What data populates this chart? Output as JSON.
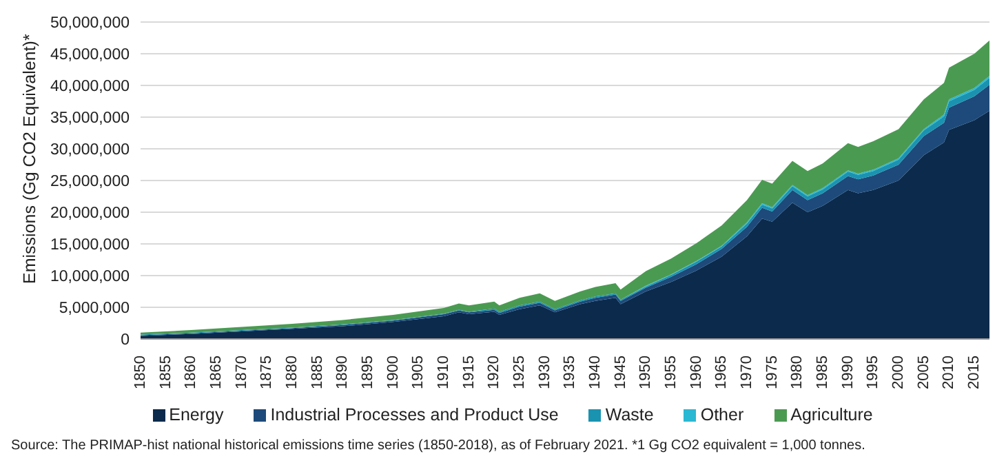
{
  "chart_data": {
    "type": "area",
    "stacked": true,
    "ylabel": "Emissions (Gg CO2 Equivalent)*",
    "x": [
      1850,
      1860,
      1870,
      1880,
      1890,
      1900,
      1910,
      1913,
      1915,
      1920,
      1921,
      1925,
      1929,
      1932,
      1937,
      1940,
      1944,
      1945,
      1950,
      1955,
      1960,
      1965,
      1970,
      1973,
      1975,
      1979,
      1982,
      1985,
      1990,
      1992,
      1995,
      2000,
      2005,
      2009,
      2010,
      2015,
      2018
    ],
    "series": [
      {
        "name": "Energy",
        "color": "#0b2a4c",
        "values": [
          500000,
          800000,
          1200000,
          1600000,
          2000000,
          2700000,
          3600000,
          4200000,
          3900000,
          4300000,
          3800000,
          4700000,
          5300000,
          4200000,
          5500000,
          6000000,
          6500000,
          5500000,
          7500000,
          9000000,
          10800000,
          13000000,
          16200000,
          19000000,
          18500000,
          21500000,
          20000000,
          21000000,
          23500000,
          23000000,
          23500000,
          25000000,
          29000000,
          31000000,
          33000000,
          34500000,
          36000000
        ]
      },
      {
        "name": "Industrial Processes and Product Use",
        "color": "#1d4a7a",
        "values": [
          100000,
          100000,
          100000,
          100000,
          200000,
          200000,
          300000,
          300000,
          300000,
          300000,
          300000,
          400000,
          400000,
          300000,
          400000,
          500000,
          500000,
          500000,
          600000,
          800000,
          1000000,
          1200000,
          1500000,
          1700000,
          1600000,
          2000000,
          1900000,
          2000000,
          2200000,
          2200000,
          2300000,
          2500000,
          3000000,
          3100000,
          3500000,
          3800000,
          4100000
        ]
      },
      {
        "name": "Waste",
        "color": "#1a93b0",
        "values": [
          100000,
          100000,
          100000,
          100000,
          100000,
          100000,
          100000,
          100000,
          100000,
          200000,
          200000,
          200000,
          200000,
          200000,
          200000,
          200000,
          200000,
          200000,
          200000,
          300000,
          400000,
          400000,
          500000,
          500000,
          500000,
          600000,
          600000,
          600000,
          700000,
          700000,
          700000,
          800000,
          900000,
          1000000,
          1000000,
          1000000,
          1100000
        ]
      },
      {
        "name": "Other",
        "color": "#2bb8d2",
        "values": [
          0,
          0,
          0,
          0,
          0,
          0,
          0,
          0,
          0,
          0,
          0,
          0,
          0,
          0,
          0,
          0,
          0,
          0,
          100000,
          100000,
          100000,
          100000,
          200000,
          200000,
          200000,
          200000,
          200000,
          200000,
          200000,
          200000,
          200000,
          200000,
          200000,
          300000,
          300000,
          300000,
          300000
        ]
      },
      {
        "name": "Agriculture",
        "color": "#4b9a52",
        "values": [
          300000,
          400000,
          500000,
          600000,
          700000,
          800000,
          900000,
          1000000,
          1000000,
          1100000,
          1000000,
          1200000,
          1300000,
          1300000,
          1400000,
          1500000,
          1600000,
          1600000,
          2300000,
          2500000,
          2800000,
          3200000,
          3500000,
          3700000,
          3700000,
          3800000,
          3800000,
          3900000,
          4300000,
          4200000,
          4500000,
          4600000,
          4700000,
          5000000,
          5000000,
          5400000,
          5600000
        ]
      }
    ],
    "xlim": [
      1850,
      2018
    ],
    "xticks": [
      1850,
      1855,
      1860,
      1865,
      1870,
      1875,
      1880,
      1885,
      1890,
      1895,
      1900,
      1905,
      1910,
      1915,
      1920,
      1925,
      1930,
      1935,
      1940,
      1945,
      1950,
      1955,
      1960,
      1965,
      1970,
      1975,
      1980,
      1985,
      1990,
      1995,
      2000,
      2005,
      2010,
      2015
    ],
    "ylim": [
      0,
      50000000
    ],
    "yticks": [
      0,
      {
        "value": 5000000,
        "label": "5,000,000"
      },
      {
        "value": 10000000,
        "label": "10,000,000"
      },
      {
        "value": 15000000,
        "label": "15,000,000"
      },
      {
        "value": 20000000,
        "label": "20,000,000"
      },
      {
        "value": 25000000,
        "label": "25,000,000"
      },
      {
        "value": 30000000,
        "label": "30,000,000"
      },
      {
        "value": 35000000,
        "label": "35,000,000"
      },
      {
        "value": 40000000,
        "label": "40,000,000"
      },
      {
        "value": 45000000,
        "label": "45,000,000"
      },
      {
        "value": 50000000,
        "label": "50,000,000"
      }
    ],
    "grid": "y",
    "legend": "bottom",
    "annotations": [
      "Source: The PRIMAP-hist national historical emissions time series (1850-2018), as of February 2021. *1 Gg CO2 equivalent = 1,000 tonnes."
    ]
  }
}
